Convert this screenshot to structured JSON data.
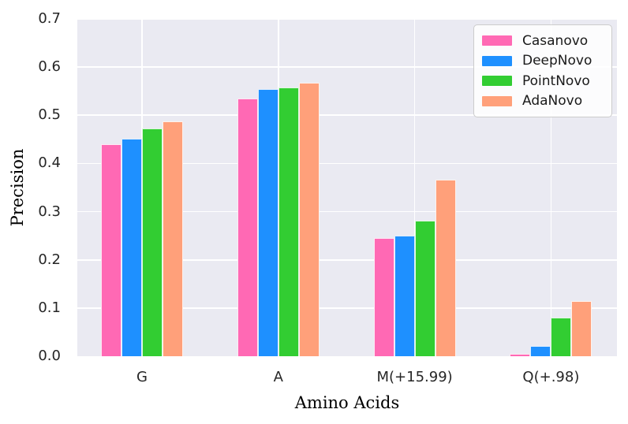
{
  "chart_data": {
    "type": "bar",
    "title": "",
    "xlabel": "Amino Acids",
    "ylabel": "Precision",
    "categories": [
      "G",
      "A",
      "M(+15.99)",
      "Q(+.98)"
    ],
    "series": [
      {
        "name": "Casanovo",
        "color": "#FF69B4",
        "values": [
          0.44,
          0.535,
          0.245,
          0.005
        ]
      },
      {
        "name": "DeepNovo",
        "color": "#1E90FF",
        "values": [
          0.452,
          0.555,
          0.25,
          0.022
        ]
      },
      {
        "name": "PointNovo",
        "color": "#32CD32",
        "values": [
          0.472,
          0.558,
          0.282,
          0.08
        ]
      },
      {
        "name": "AdaNovo",
        "color": "#FFA07A",
        "values": [
          0.487,
          0.567,
          0.367,
          0.115
        ]
      }
    ],
    "ylim": [
      0,
      0.7
    ],
    "yticks": [
      0.0,
      0.1,
      0.2,
      0.3,
      0.4,
      0.5,
      0.6,
      0.7
    ],
    "grid": true,
    "legend_position": "upper-right",
    "colors": {
      "plot_background": "#EAEAF2",
      "gridline": "#FFFFFF",
      "tick_text": "#262626",
      "label_text": "#000000"
    }
  }
}
